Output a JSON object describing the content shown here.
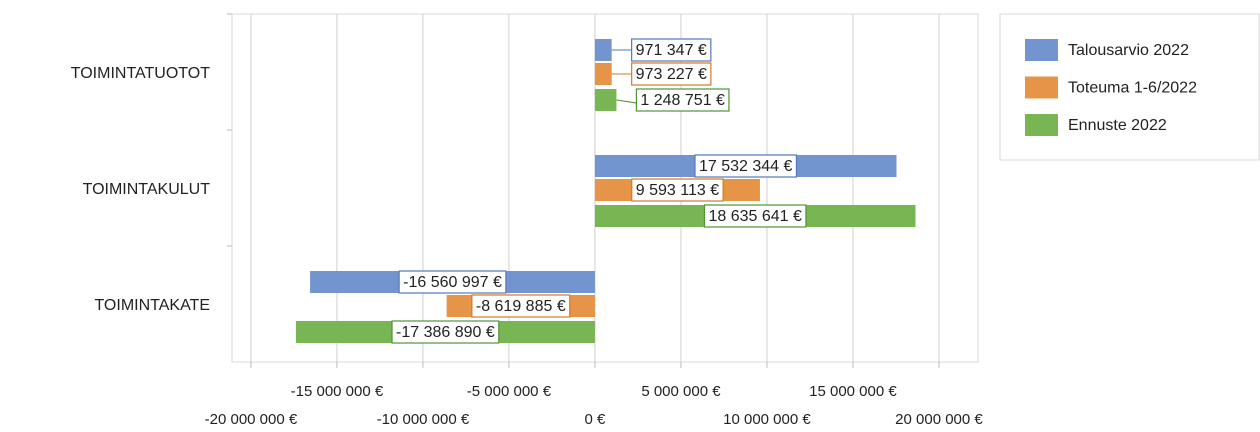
{
  "chart_data": {
    "type": "hbar",
    "categories": [
      "TOIMINTATUOTOT",
      "TOIMINTAKULUT",
      "TOIMINTAKATE"
    ],
    "series": [
      {
        "name": "Talousarvio 2022",
        "color": "#7295cf",
        "text_color": "#5577bb",
        "values": [
          971347,
          17532344,
          -16560997
        ],
        "value_labels": [
          "971 347 €",
          "17 532 344 €",
          "-16 560 997 €"
        ]
      },
      {
        "name": "Toteuma 1-6/2022",
        "color": "#e59448",
        "text_color": "#d27a2a",
        "values": [
          973227,
          9593113,
          -8619885
        ],
        "value_labels": [
          "973 227 €",
          "9 593 113 €",
          "-8 619 885 €"
        ]
      },
      {
        "name": "Ennuste 2022",
        "color": "#78b553",
        "text_color": "#529236",
        "values": [
          1248751,
          18635641,
          -17386890
        ],
        "value_labels": [
          "1 248 751 €",
          "18 635 641 €",
          "-17 386 890 €"
        ]
      }
    ],
    "xlim": [
      -21100000,
      22270000
    ],
    "xticks": [
      {
        "value": -20000000,
        "label": "-20 000 000 €"
      },
      {
        "value": -15000000,
        "label": "-15 000 000 €"
      },
      {
        "value": -10000000,
        "label": "-10 000 000 €"
      },
      {
        "value": -5000000,
        "label": "-5 000 000 €"
      },
      {
        "value": 0,
        "label": "0 €"
      },
      {
        "value": 5000000,
        "label": "5 000 000 €"
      },
      {
        "value": 10000000,
        "label": "10 000 000 €"
      },
      {
        "value": 15000000,
        "label": "15 000 000 €"
      },
      {
        "value": 20000000,
        "label": "20 000 000 €"
      }
    ],
    "grid": true,
    "legend": "right"
  }
}
